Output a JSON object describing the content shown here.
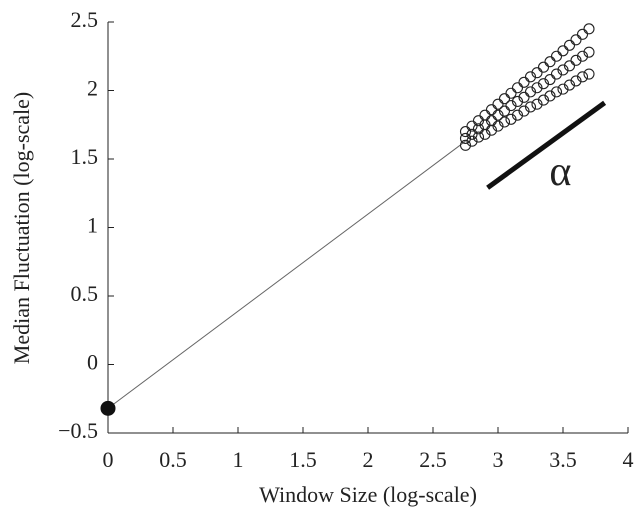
{
  "chart_data": {
    "type": "scatter",
    "x_label": "Window Size (log-scale)",
    "y_label": "Median Fluctuation (log-scale)",
    "xlim": [
      0,
      4
    ],
    "ylim": [
      -0.5,
      2.5
    ],
    "xticks": [
      0,
      0.5,
      1,
      1.5,
      2,
      2.5,
      3,
      3.5,
      4
    ],
    "yticks": [
      {
        "value": -0.5,
        "label": "−0.5"
      },
      0,
      0.5,
      1,
      1.5,
      2,
      2.5
    ],
    "x": [
      2.75,
      2.8,
      2.85,
      2.9,
      2.95,
      3.0,
      3.05,
      3.1,
      3.15,
      3.2,
      3.25,
      3.3,
      3.35,
      3.4,
      3.45,
      3.5,
      3.55,
      3.6,
      3.65,
      3.7
    ],
    "series": [
      {
        "color": "#222222",
        "values": [
          1.6,
          1.63,
          1.66,
          1.68,
          1.71,
          1.74,
          1.77,
          1.79,
          1.82,
          1.85,
          1.88,
          1.9,
          1.93,
          1.96,
          1.99,
          2.01,
          2.04,
          2.07,
          2.1,
          2.12
        ]
      },
      {
        "color": "#222222",
        "values": [
          1.65,
          1.68,
          1.72,
          1.75,
          1.78,
          1.82,
          1.85,
          1.89,
          1.92,
          1.95,
          1.99,
          2.02,
          2.05,
          2.08,
          2.12,
          2.15,
          2.18,
          2.22,
          2.25,
          2.28
        ]
      },
      {
        "color": "#222222",
        "values": [
          1.7,
          1.74,
          1.78,
          1.82,
          1.86,
          1.9,
          1.94,
          1.98,
          2.02,
          2.06,
          2.1,
          2.13,
          2.17,
          2.21,
          2.25,
          2.29,
          2.33,
          2.37,
          2.41,
          2.45
        ]
      }
    ],
    "fit_line": {
      "x": [
        0,
        2.75
      ],
      "values": [
        -0.32,
        1.63
      ],
      "color": "#666666"
    },
    "start_point": {
      "x": 0,
      "y": -0.32,
      "color": "#111111"
    },
    "slope_marker": {
      "x": [
        2.92,
        3.82
      ],
      "values": [
        1.29,
        1.91
      ],
      "color": "#111111",
      "label": "α",
      "label_x": 3.48,
      "label_y": 1.38
    }
  }
}
